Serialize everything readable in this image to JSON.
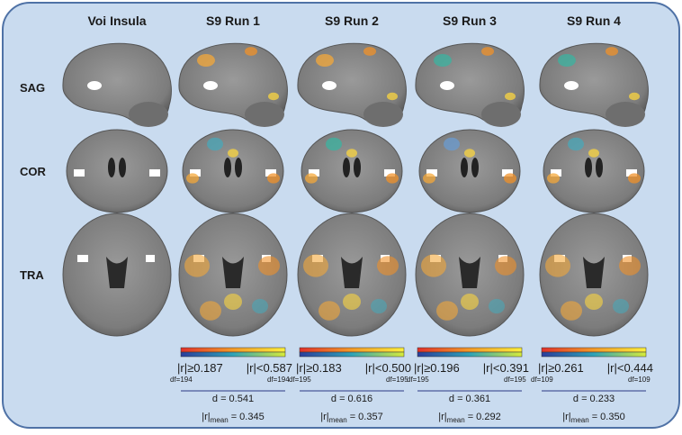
{
  "columns": [
    "Voi Insula",
    "S9 Run 1",
    "S9 Run 2",
    "S9 Run 3",
    "S9 Run 4"
  ],
  "rows": [
    "SAG",
    "COR",
    "TRA"
  ],
  "runs": [
    {
      "r_low": "|r|≥0.187",
      "df_low": "df=194",
      "r_high": "|r|<0.587",
      "df_high": "df=194",
      "d": "d = 0.541",
      "rmean_symbol": "|r|",
      "rmean_sub": "mean",
      "rmean_value": "= 0.345"
    },
    {
      "r_low": "|r|≥0.183",
      "df_low": "df=195",
      "r_high": "|r|<0.500",
      "df_high": "df=195",
      "d": "d = 0.616",
      "rmean_symbol": "|r|",
      "rmean_sub": "mean",
      "rmean_value": "= 0.357"
    },
    {
      "r_low": "|r|≥0.196",
      "df_low": "df=195",
      "r_high": "|r|<0.391",
      "df_high": "df=195",
      "d": "d = 0.361",
      "rmean_symbol": "|r|",
      "rmean_sub": "mean",
      "rmean_value": "= 0.292"
    },
    {
      "r_low": "|r|≥0.261",
      "df_low": "df=109",
      "r_high": "|r|<0.444",
      "df_high": "df=109",
      "d": "d = 0.233",
      "rmean_symbol": "|r|",
      "rmean_sub": "mean",
      "rmean_value": "= 0.350"
    }
  ]
}
